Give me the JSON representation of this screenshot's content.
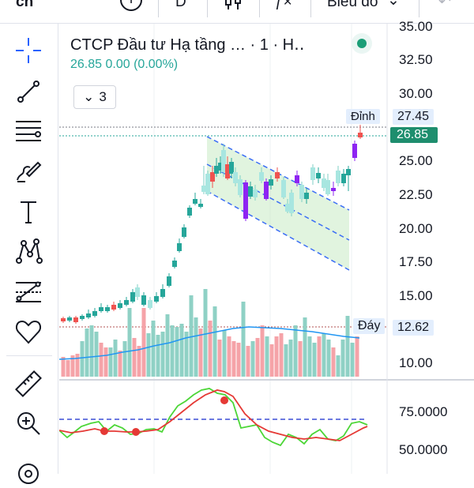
{
  "topbar": {
    "left_label": "cn",
    "add_icon": "plus-icon",
    "interval": "D",
    "chart_type_icon": "candles-icon",
    "indicators_icon": "function-icon",
    "indicators_label": "ƒ×",
    "chart_menu_label": "Biểu đồ",
    "undo_icon": "undo-icon"
  },
  "sidebar": {
    "tools": [
      {
        "name": "crosshair-icon"
      },
      {
        "name": "trendline-icon"
      },
      {
        "name": "fib-levels-icon"
      },
      {
        "name": "brush-icon"
      },
      {
        "name": "text-icon"
      },
      {
        "name": "patterns-icon"
      },
      {
        "name": "forecast-icon"
      },
      {
        "name": "favorites-heart-icon"
      },
      {
        "name": "ruler-icon"
      },
      {
        "name": "zoom-in-icon"
      },
      {
        "name": "magnet-icon"
      }
    ]
  },
  "legend": {
    "title": "CTCP Đầu tư Hạ tầng … · 1 · H‥",
    "last": "26.85",
    "change": "0.00",
    "change_pct": "(0.00%)",
    "collapse_count": "3",
    "status_color": "#1b9e77"
  },
  "price_scale": {
    "labels": [
      "35.00",
      "32.50",
      "30.00",
      "27.45",
      "26.85",
      "25.00",
      "22.50",
      "20.00",
      "17.50",
      "15.00",
      "12.62",
      "10.00"
    ],
    "high_label": "Đỉnh",
    "high_value": "27.45",
    "current_value": "26.85",
    "low_label": "Đáy",
    "low_value": "12.62"
  },
  "oscillator_scale": {
    "labels": [
      "75.0000",
      "50.0000"
    ]
  },
  "colors": {
    "up": "#a8e6e0",
    "down": "#8e24f2",
    "up_red": "#ef5350",
    "up_green": "#26a69a",
    "channel_fill": "#c8ebc5",
    "volume_up": "#8fd1c5",
    "volume_down": "#f5a3a8",
    "ma_line": "#2196f3",
    "osc_green": "#4cd637",
    "osc_red": "#e53935"
  }
}
